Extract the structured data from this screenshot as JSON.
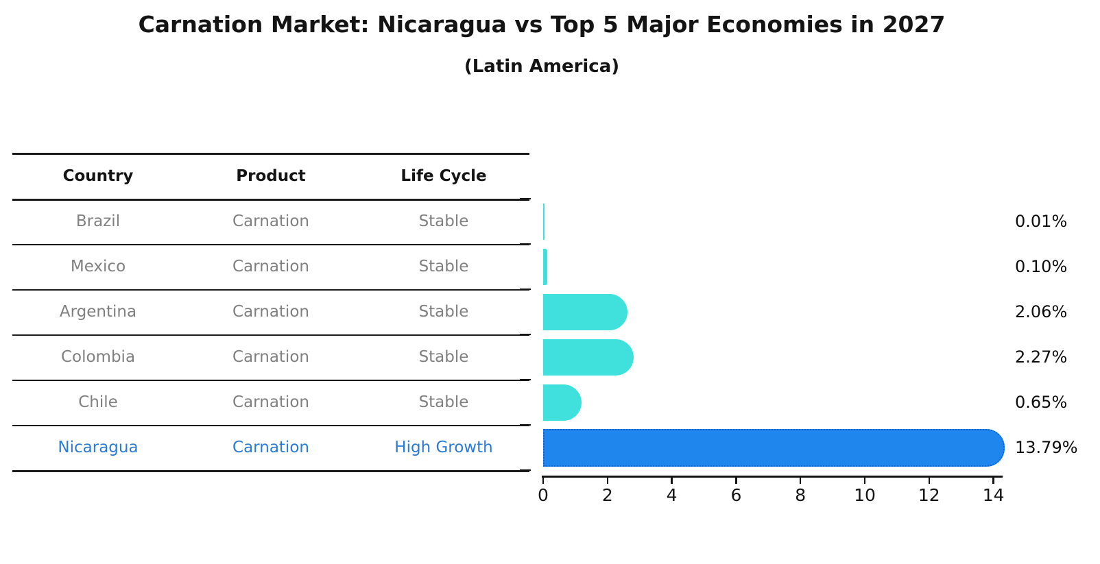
{
  "chart_data": {
    "type": "bar",
    "orientation": "horizontal",
    "title": "Carnation Market: Nicaragua vs Top 5 Major Economies in 2027",
    "subtitle": "(Latin America)",
    "categories": [
      "Brazil",
      "Mexico",
      "Argentina",
      "Colombia",
      "Chile",
      "Nicaragua"
    ],
    "values": [
      0.01,
      0.1,
      2.06,
      2.27,
      0.65,
      13.79
    ],
    "value_labels": [
      "0.01%",
      "0.10%",
      "2.06%",
      "2.27%",
      "0.65%",
      "13.79%"
    ],
    "highlight_index": 5,
    "xticks": [
      0,
      2,
      4,
      6,
      8,
      10,
      12,
      14
    ],
    "xlim": [
      0,
      14.3
    ],
    "grid": false,
    "legend": null,
    "bar_color_stable": "#40E0DC",
    "bar_color_highlight": "#1E86EC",
    "bar_border_highlight": "#1062CE"
  },
  "table": {
    "headers": [
      "Country",
      "Product",
      "Life Cycle"
    ],
    "rows": [
      {
        "country": "Brazil",
        "product": "Carnation",
        "life_cycle": "Stable",
        "highlight": false
      },
      {
        "country": "Mexico",
        "product": "Carnation",
        "life_cycle": "Stable",
        "highlight": false
      },
      {
        "country": "Argentina",
        "product": "Carnation",
        "life_cycle": "Stable",
        "highlight": false
      },
      {
        "country": "Colombia",
        "product": "Carnation",
        "life_cycle": "Stable",
        "highlight": false
      },
      {
        "country": "Chile",
        "product": "Carnation",
        "life_cycle": "Stable",
        "highlight": false
      },
      {
        "country": "Nicaragua",
        "product": "Carnation",
        "life_cycle": "High Growth",
        "highlight": true
      }
    ]
  },
  "colors": {
    "title_text": "#141414",
    "header_text": "#141414",
    "row_text": "#808080",
    "highlight_text": "#2A7CD4",
    "line": "#1a1a1a",
    "background": "#ffffff"
  }
}
